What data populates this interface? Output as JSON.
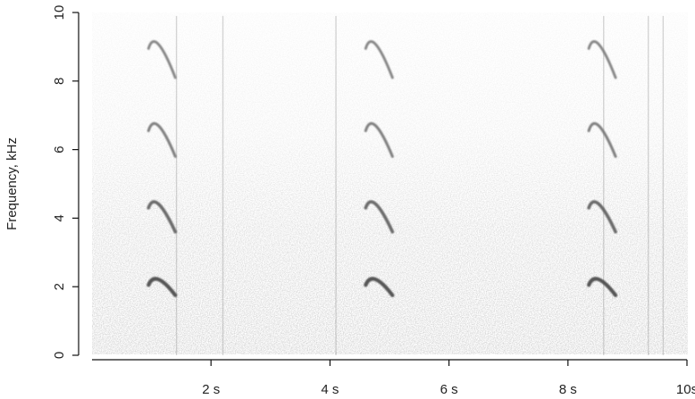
{
  "chart_data": {
    "type": "heatmap",
    "subtype": "spectrogram",
    "title": "",
    "xlabel": "",
    "ylabel": "Frequency, kHz",
    "xlim": [
      0,
      10
    ],
    "ylim": [
      0,
      10
    ],
    "x_ticks": [
      {
        "value": 2,
        "label": "2 s"
      },
      {
        "value": 4,
        "label": "4 s"
      },
      {
        "value": 6,
        "label": "6 s"
      },
      {
        "value": 8,
        "label": "8 s"
      },
      {
        "value": 10,
        "label": "10s"
      }
    ],
    "y_ticks": [
      {
        "value": 0,
        "label": "0"
      },
      {
        "value": 2,
        "label": "2"
      },
      {
        "value": 4,
        "label": "4"
      },
      {
        "value": 6,
        "label": "6"
      },
      {
        "value": 8,
        "label": "8"
      },
      {
        "value": 10,
        "label": "10"
      }
    ],
    "grid": false,
    "colormap": "grayscale",
    "background_noise": {
      "note_band_kHz": [
        0,
        4
      ],
      "color": "#b0b0b0"
    },
    "call_onsets_s": [
      0.95,
      4.6,
      8.35
    ],
    "call_duration_s": 0.45,
    "harmonics": [
      {
        "rank": 1,
        "start_kHz": 2.05,
        "peak_kHz": 2.3,
        "end_kHz": 1.75,
        "intensity": 1.0
      },
      {
        "rank": 2,
        "start_kHz": 4.3,
        "peak_kHz": 4.6,
        "end_kHz": 3.6,
        "intensity": 0.75
      },
      {
        "rank": 3,
        "start_kHz": 6.55,
        "peak_kHz": 6.9,
        "end_kHz": 5.8,
        "intensity": 0.5
      },
      {
        "rank": 4,
        "start_kHz": 8.95,
        "peak_kHz": 9.3,
        "end_kHz": 8.1,
        "intensity": 0.42
      }
    ],
    "broadband_clicks_s": [
      1.42,
      2.2,
      4.1,
      8.6,
      9.35,
      9.6
    ]
  }
}
